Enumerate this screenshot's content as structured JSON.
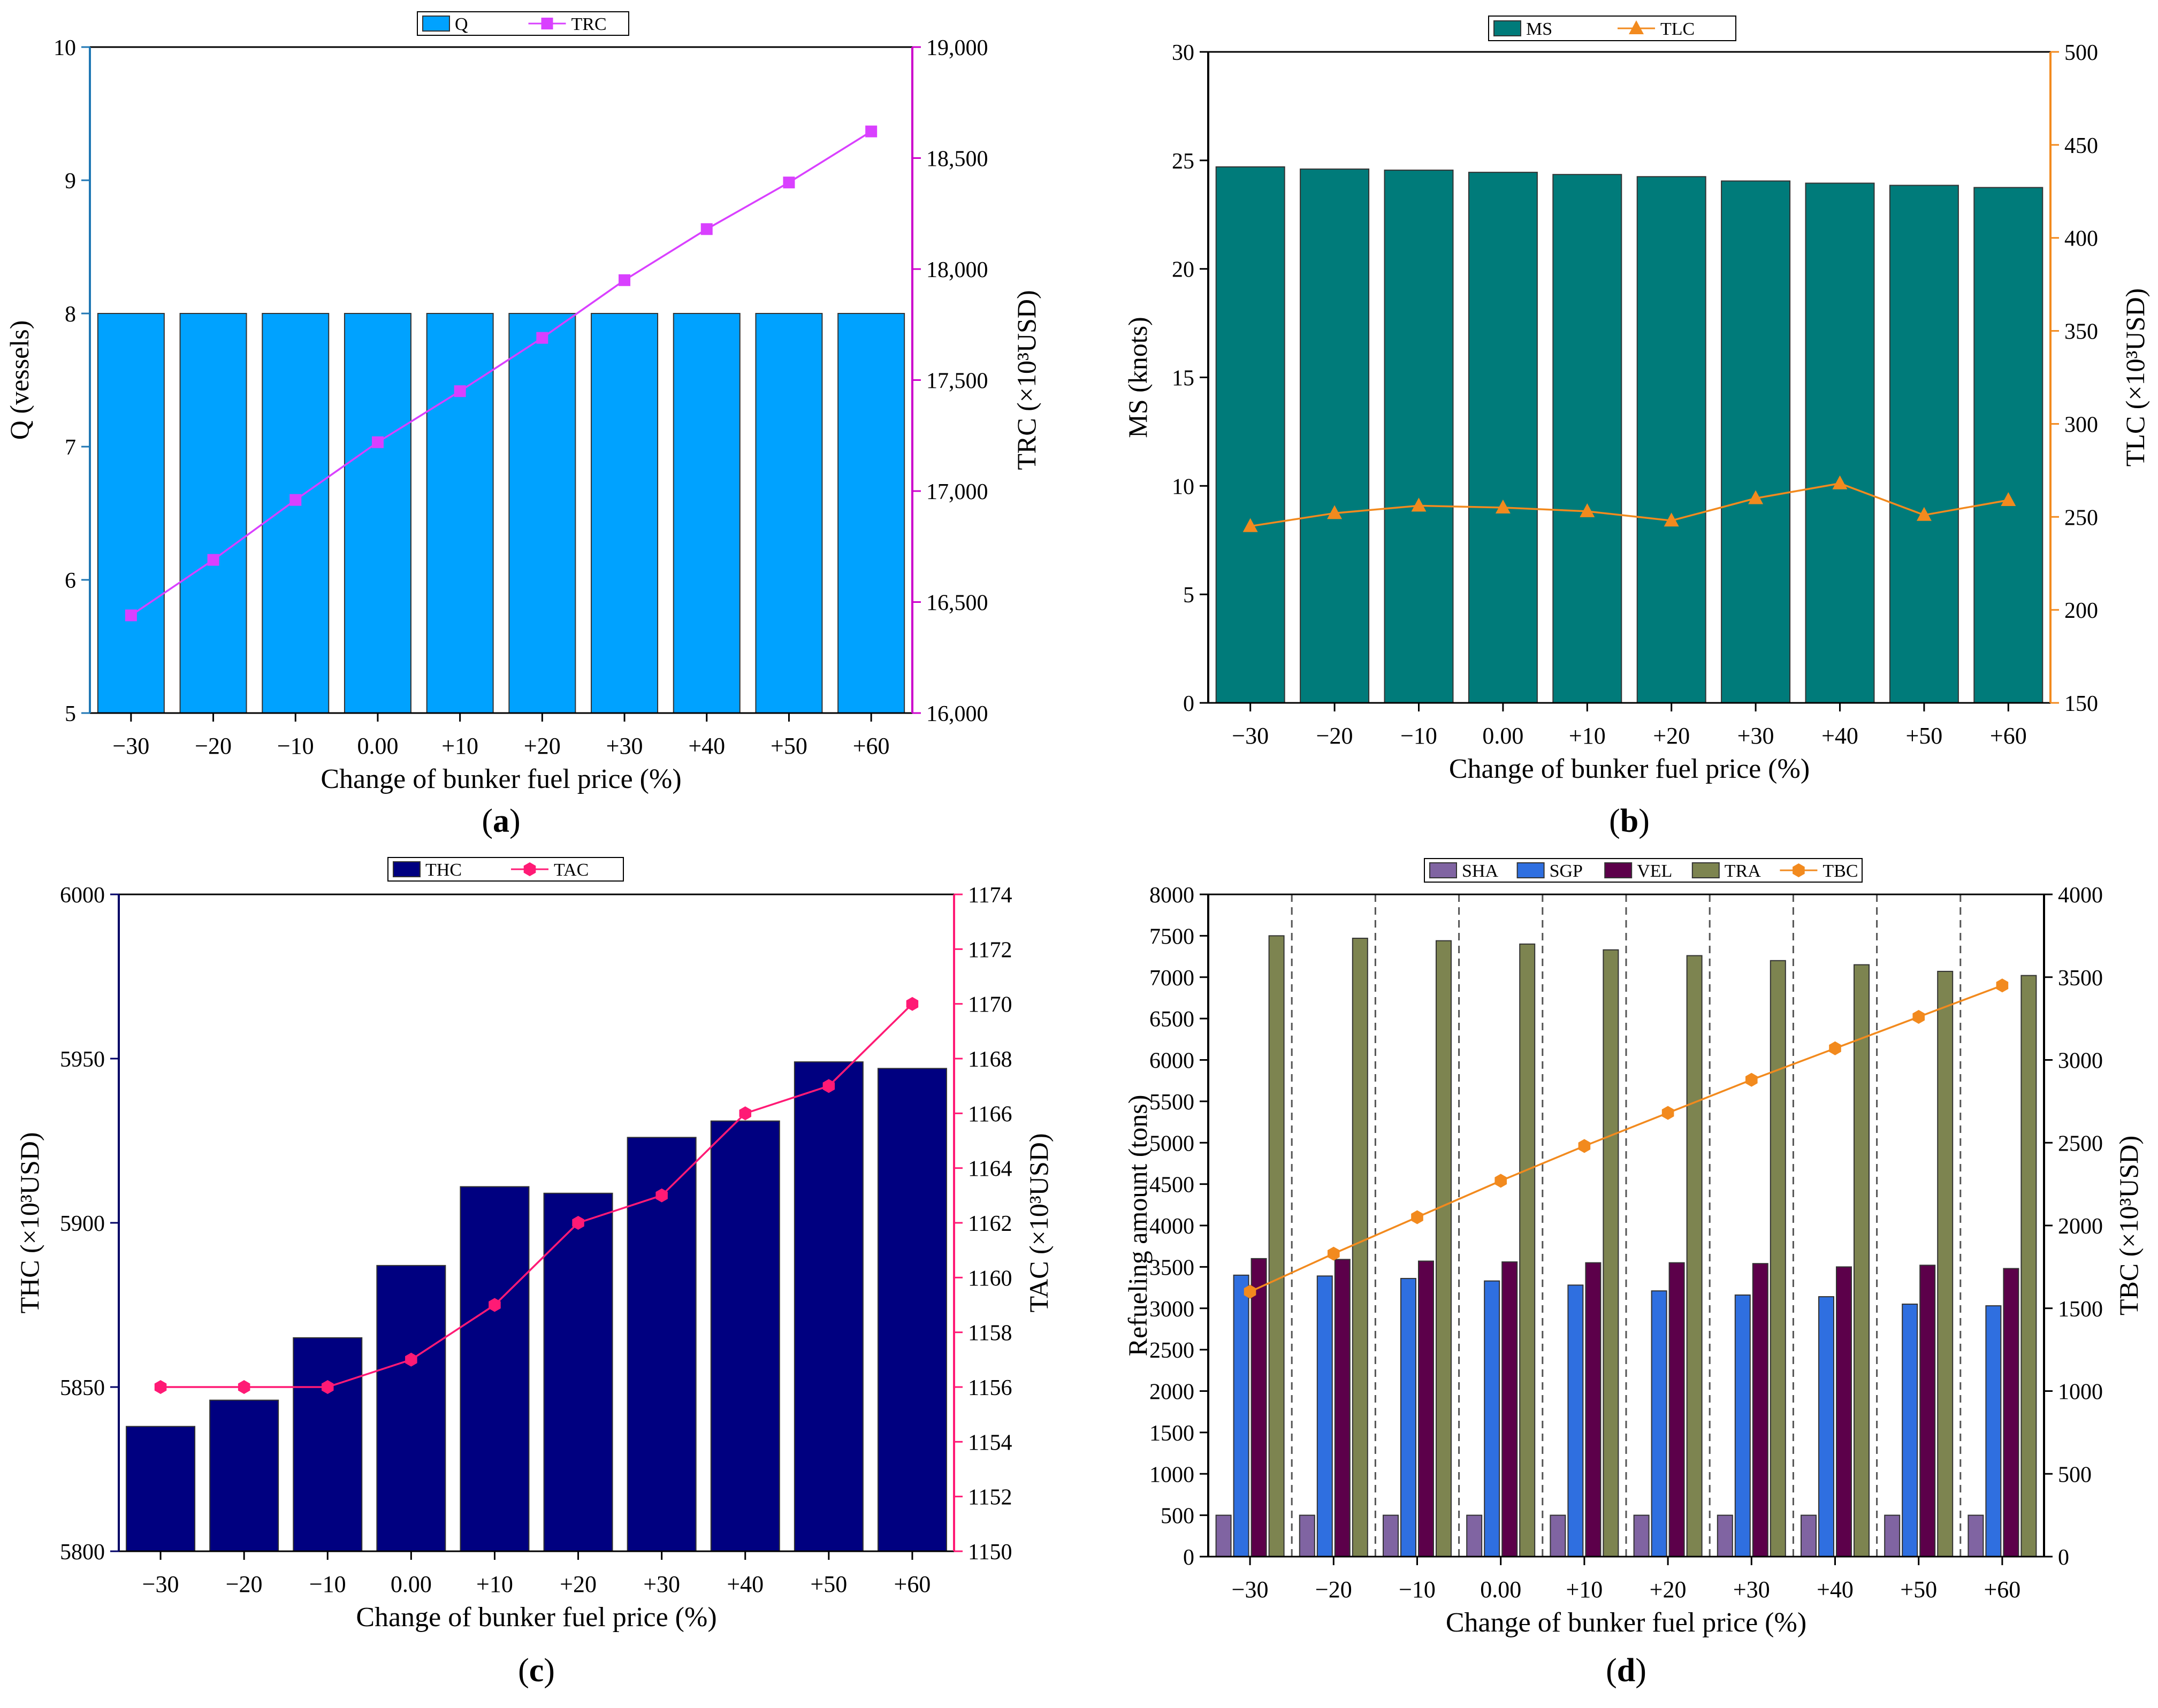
{
  "chart_data": [
    {
      "id": "a",
      "type": "bar",
      "panel_label": "(a)",
      "categories": [
        "−30",
        "−20",
        "−10",
        "0.00",
        "+10",
        "+20",
        "+30",
        "+40",
        "+50",
        "+60"
      ],
      "xlabel": "Change of bunker fuel price (%)",
      "left_axis": {
        "label": "Q (vessels)",
        "ylim": [
          5,
          10
        ],
        "ticks": [
          "5",
          "6",
          "7",
          "8",
          "9",
          "10"
        ],
        "tick_values": [
          5,
          6,
          7,
          8,
          9,
          10
        ],
        "color": "#1f77b4"
      },
      "right_axis": {
        "label": "TRC (×10³USD)",
        "ylim": [
          16000,
          19000
        ],
        "ticks": [
          "16,000",
          "16,500",
          "17,000",
          "17,500",
          "18,000",
          "18,500",
          "19,000"
        ],
        "tick_values": [
          16000,
          16500,
          17000,
          17500,
          18000,
          18500,
          19000
        ],
        "color": "#cc00cc"
      },
      "series": [
        {
          "name": "Q",
          "kind": "bar",
          "axis": "left",
          "color": "#00a2ff",
          "values": [
            8,
            8,
            8,
            8,
            8,
            8,
            8,
            8,
            8,
            8
          ]
        },
        {
          "name": "TRC",
          "kind": "line",
          "axis": "right",
          "color": "#d940ff",
          "marker": "square",
          "values": [
            16440,
            16690,
            16960,
            17220,
            17450,
            17690,
            17950,
            18180,
            18390,
            18620
          ]
        }
      ],
      "legend": {
        "entries": [
          "Q",
          "TRC"
        ],
        "position": "top-center"
      }
    },
    {
      "id": "b",
      "type": "bar",
      "panel_label": "(b)",
      "categories": [
        "−30",
        "−20",
        "−10",
        "0.00",
        "+10",
        "+20",
        "+30",
        "+40",
        "+50",
        "+60"
      ],
      "xlabel": "Change of bunker fuel price (%)",
      "left_axis": {
        "label": "MS (knots)",
        "ylim": [
          0,
          30
        ],
        "ticks": [
          "0",
          "5",
          "10",
          "15",
          "20",
          "25",
          "30"
        ],
        "tick_values": [
          0,
          5,
          10,
          15,
          20,
          25,
          30
        ],
        "color": "#000000"
      },
      "right_axis": {
        "label": "TLC (×10³USD)",
        "ylim": [
          150,
          500
        ],
        "ticks": [
          "150",
          "200",
          "250",
          "300",
          "350",
          "400",
          "450",
          "500"
        ],
        "tick_values": [
          150,
          200,
          250,
          300,
          350,
          400,
          450,
          500
        ],
        "color": "#f28a1e"
      },
      "series": [
        {
          "name": "MS",
          "kind": "bar",
          "axis": "left",
          "color": "#007b7a",
          "values": [
            24.7,
            24.6,
            24.55,
            24.45,
            24.35,
            24.25,
            24.05,
            23.95,
            23.85,
            23.75
          ]
        },
        {
          "name": "TLC",
          "kind": "line",
          "axis": "right",
          "color": "#f28a1e",
          "marker": "triangle",
          "values": [
            245,
            252,
            256,
            255,
            253,
            248,
            260,
            268,
            251,
            259
          ]
        }
      ],
      "legend": {
        "entries": [
          "MS",
          "TLC"
        ],
        "position": "top-center"
      }
    },
    {
      "id": "c",
      "type": "bar",
      "panel_label": "(c)",
      "categories": [
        "−30",
        "−20",
        "−10",
        "0.00",
        "+10",
        "+20",
        "+30",
        "+40",
        "+50",
        "+60"
      ],
      "xlabel": "Change of bunker fuel price (%)",
      "left_axis": {
        "label": "THC (×10³USD)",
        "ylim": [
          5800,
          6000
        ],
        "ticks": [
          "5800",
          "5850",
          "5900",
          "5950",
          "6000"
        ],
        "tick_values": [
          5800,
          5850,
          5900,
          5950,
          6000
        ],
        "color": "#000066"
      },
      "right_axis": {
        "label": "TAC (×10³USD)",
        "ylim": [
          1150,
          1174
        ],
        "ticks": [
          "1150",
          "1152",
          "1154",
          "1156",
          "1158",
          "1160",
          "1162",
          "1164",
          "1166",
          "1168",
          "1170",
          "1172",
          "1174"
        ],
        "tick_values": [
          1150,
          1152,
          1154,
          1156,
          1158,
          1160,
          1162,
          1164,
          1166,
          1168,
          1170,
          1172,
          1174
        ],
        "color": "#ff1a75"
      },
      "series": [
        {
          "name": "THC",
          "kind": "bar",
          "axis": "left",
          "color": "#000080",
          "values": [
            5838,
            5846,
            5865,
            5887,
            5911,
            5909,
            5926,
            5931,
            5949,
            5947
          ]
        },
        {
          "name": "TAC",
          "kind": "line",
          "axis": "right",
          "color": "#ff1a75",
          "marker": "hexagon",
          "values": [
            1156,
            1156,
            1156,
            1157,
            1159,
            1162,
            1163,
            1166,
            1167,
            1170
          ]
        }
      ],
      "legend": {
        "entries": [
          "THC",
          "TAC"
        ],
        "position": "top-center"
      }
    },
    {
      "id": "d",
      "type": "bar",
      "panel_label": "(d)",
      "categories": [
        "−30",
        "−20",
        "−10",
        "0.00",
        "+10",
        "+20",
        "+30",
        "+40",
        "+50",
        "+60"
      ],
      "xlabel": "Change of bunker fuel price (%)",
      "left_axis": {
        "label": "Refueling amount (tons)",
        "ylim": [
          0,
          8000
        ],
        "ticks": [
          "0",
          "500",
          "1000",
          "1500",
          "2000",
          "2500",
          "3000",
          "3500",
          "4000",
          "4500",
          "5000",
          "5500",
          "6000",
          "6500",
          "7000",
          "7500",
          "8000"
        ],
        "tick_values": [
          0,
          500,
          1000,
          1500,
          2000,
          2500,
          3000,
          3500,
          4000,
          4500,
          5000,
          5500,
          6000,
          6500,
          7000,
          7500,
          8000
        ],
        "color": "#000000"
      },
      "right_axis": {
        "label": "TBC (×10³USD)",
        "ylim": [
          0,
          4000
        ],
        "ticks": [
          "0",
          "500",
          "1000",
          "1500",
          "2000",
          "2500",
          "3000",
          "3500",
          "4000"
        ],
        "tick_values": [
          0,
          500,
          1000,
          1500,
          2000,
          2500,
          3000,
          3500,
          4000
        ],
        "color": "#000000"
      },
      "series": [
        {
          "name": "SHA",
          "kind": "bar",
          "axis": "left",
          "color": "#8064a2",
          "values": [
            500,
            500,
            500,
            500,
            500,
            500,
            500,
            500,
            500,
            500
          ]
        },
        {
          "name": "SGP",
          "kind": "bar",
          "axis": "left",
          "color": "#2f6fe0",
          "values": [
            3400,
            3390,
            3360,
            3330,
            3280,
            3210,
            3160,
            3140,
            3050,
            3030
          ]
        },
        {
          "name": "VEL",
          "kind": "bar",
          "axis": "left",
          "color": "#5c004a",
          "values": [
            3600,
            3590,
            3570,
            3560,
            3550,
            3550,
            3540,
            3500,
            3520,
            3480
          ]
        },
        {
          "name": "TRA",
          "kind": "bar",
          "axis": "left",
          "color": "#7d8450",
          "values": [
            7500,
            7470,
            7440,
            7400,
            7330,
            7260,
            7200,
            7150,
            7070,
            7020
          ]
        },
        {
          "name": "TBC",
          "kind": "line",
          "axis": "right",
          "color": "#f28a1e",
          "marker": "hexagon",
          "values": [
            1600,
            1830,
            2050,
            2270,
            2480,
            2680,
            2880,
            3070,
            3260,
            3450
          ]
        }
      ],
      "legend": {
        "entries": [
          "SHA",
          "SGP",
          "VEL",
          "TRA",
          "TBC"
        ],
        "position": "top-center"
      }
    }
  ]
}
